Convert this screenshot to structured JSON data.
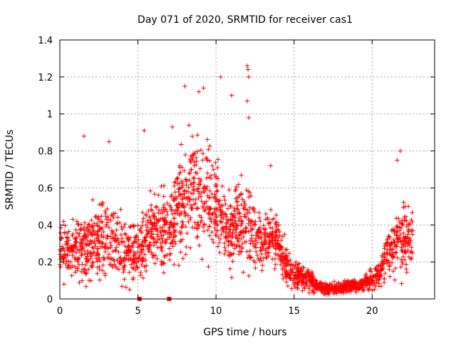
{
  "chart_data": {
    "type": "scatter",
    "title": "Day 071 of 2020, SRMTID for receiver cas1",
    "xlabel": "GPS time / hours",
    "ylabel": "SRMTID / TECUs",
    "xlim": [
      0,
      24
    ],
    "ylim": [
      0,
      1.4
    ],
    "x_ticks": [
      0,
      5,
      10,
      15,
      20
    ],
    "x_tick_labels": [
      "0",
      "5",
      "10",
      "15",
      "20"
    ],
    "y_ticks": [
      0,
      0.2,
      0.4,
      0.6,
      0.8,
      1.0,
      1.2,
      1.4
    ],
    "y_tick_labels": [
      "0",
      "0.2",
      "0.4",
      "0.6",
      "0.8",
      "1",
      "1.2",
      "1.4"
    ],
    "grid": true,
    "marker": "+",
    "color": "#ff0000",
    "envelope_hours": [
      0,
      1,
      2,
      3,
      4,
      5,
      6,
      7,
      7.5,
      8,
      8.5,
      9,
      9.5,
      10,
      10.5,
      11,
      11.5,
      12,
      12.5,
      13,
      13.5,
      14,
      14.5,
      15,
      15.5,
      16,
      16.5,
      17,
      17.5,
      18,
      18.5,
      19,
      19.5,
      20,
      20.5,
      21,
      21.5,
      22,
      22.6
    ],
    "envelope_center_tecu": [
      0.27,
      0.26,
      0.3,
      0.32,
      0.28,
      0.24,
      0.38,
      0.36,
      0.5,
      0.52,
      0.6,
      0.55,
      0.56,
      0.52,
      0.4,
      0.38,
      0.42,
      0.42,
      0.34,
      0.3,
      0.35,
      0.3,
      0.18,
      0.12,
      0.12,
      0.1,
      0.07,
      0.05,
      0.055,
      0.06,
      0.07,
      0.07,
      0.08,
      0.1,
      0.14,
      0.25,
      0.3,
      0.33,
      0.35
    ],
    "envelope_spread_tecu": [
      0.09,
      0.1,
      0.12,
      0.14,
      0.12,
      0.1,
      0.13,
      0.14,
      0.17,
      0.2,
      0.21,
      0.2,
      0.2,
      0.18,
      0.15,
      0.14,
      0.16,
      0.16,
      0.12,
      0.1,
      0.1,
      0.1,
      0.07,
      0.05,
      0.05,
      0.04,
      0.02,
      0.02,
      0.02,
      0.02,
      0.02,
      0.025,
      0.03,
      0.04,
      0.06,
      0.08,
      0.1,
      0.12,
      0.1
    ],
    "outliers": [
      {
        "x": 1.55,
        "y": 0.88
      },
      {
        "x": 3.15,
        "y": 0.85
      },
      {
        "x": 5.4,
        "y": 0.91
      },
      {
        "x": 8.0,
        "y": 1.15
      },
      {
        "x": 8.9,
        "y": 1.12
      },
      {
        "x": 9.2,
        "y": 1.14
      },
      {
        "x": 10.3,
        "y": 1.2
      },
      {
        "x": 11.0,
        "y": 1.1
      },
      {
        "x": 12.0,
        "y": 1.26
      },
      {
        "x": 12.05,
        "y": 1.24
      },
      {
        "x": 12.1,
        "y": 1.2
      },
      {
        "x": 12.0,
        "y": 1.07
      },
      {
        "x": 12.1,
        "y": 0.98
      },
      {
        "x": 7.2,
        "y": 0.93
      },
      {
        "x": 21.8,
        "y": 0.8
      },
      {
        "x": 21.6,
        "y": 0.75
      },
      {
        "x": 13.5,
        "y": 0.72
      },
      {
        "x": 5.1,
        "y": 0.0
      },
      {
        "x": 7.0,
        "y": 0.0
      }
    ]
  }
}
